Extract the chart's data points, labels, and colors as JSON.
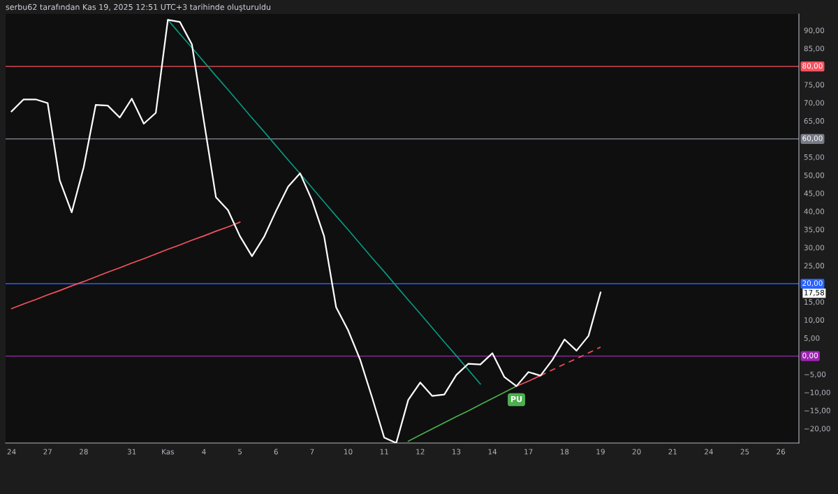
{
  "chart_data": {
    "type": "line",
    "title": "serbu62 tarafından Kas 19, 2025 12:51 UTC+3 tarihinde oluşturuldu",
    "ylim": [
      -24,
      94.5
    ],
    "categories": [
      "24",
      null,
      null,
      "27",
      null,
      null,
      "28",
      null,
      null,
      null,
      "31",
      null,
      null,
      "Kas",
      null,
      null,
      "4",
      null,
      null,
      "5",
      null,
      null,
      "6",
      null,
      null,
      "7",
      null,
      null,
      "10",
      null,
      null,
      "11",
      null,
      null,
      "12",
      null,
      null,
      "13",
      null,
      null,
      "14",
      null,
      null,
      "17",
      null,
      null,
      "18",
      null,
      null,
      "19",
      null,
      null,
      "20",
      null,
      null,
      "21",
      null,
      null,
      "24",
      null,
      null,
      "25",
      null,
      null,
      "26",
      null
    ],
    "yticks": [
      {
        "value": 90,
        "label": "90,00"
      },
      {
        "value": 85,
        "label": "85,00"
      },
      {
        "value": 75,
        "label": "75,00"
      },
      {
        "value": 70,
        "label": "70,00"
      },
      {
        "value": 65,
        "label": "65,00"
      },
      {
        "value": 55,
        "label": "55,00"
      },
      {
        "value": 50,
        "label": "50,00"
      },
      {
        "value": 45,
        "label": "45,00"
      },
      {
        "value": 40,
        "label": "40,00"
      },
      {
        "value": 35,
        "label": "35,00"
      },
      {
        "value": 30,
        "label": "30,00"
      },
      {
        "value": 25,
        "label": "25,00"
      },
      {
        "value": 17.58,
        "label": "17,58"
      },
      {
        "value": 15,
        "label": "15,00"
      },
      {
        "value": 10,
        "label": "10,00"
      },
      {
        "value": 5,
        "label": "5,00"
      },
      {
        "value": -5,
        "label": "−5,00"
      },
      {
        "value": -10,
        "label": "−10,00"
      },
      {
        "value": -15,
        "label": "−15,00"
      },
      {
        "value": -20,
        "label": "−20,00"
      }
    ],
    "series": [
      {
        "color": "#ffffff",
        "values": [
          67.6,
          70.9,
          70.9,
          69.9,
          48.6,
          39.7,
          52.2,
          69.4,
          69.2,
          65.9,
          71.1,
          64.2,
          67.2,
          92.9,
          92.3,
          86.1,
          64.9,
          43.9,
          40.3,
          33.1,
          27.6,
          32.9,
          40.1,
          46.8,
          50.5,
          43.0,
          33.1,
          13.5,
          7.1,
          -1.0,
          -11.5,
          -22.5,
          -24,
          -12.1,
          -7.3,
          -11.0,
          -10.6,
          -5.2,
          -2.1,
          -2.3,
          0.8,
          -5.8,
          -8.3,
          -4.4,
          -5.4,
          -1.0,
          4.6,
          1.5,
          5.6,
          17.58,
          null,
          null,
          null,
          null,
          null,
          null,
          null,
          null,
          null,
          null,
          null,
          null,
          null,
          null,
          null,
          null
        ]
      },
      {
        "color": "#089981",
        "values": [
          null,
          null,
          null,
          null,
          null,
          null,
          null,
          null,
          null,
          null,
          null,
          null,
          null,
          92.9,
          89.0,
          85.2,
          81.3,
          77.4,
          73.6,
          69.7,
          65.8,
          62.0,
          58.1,
          54.2,
          50.4,
          46.5,
          42.6,
          38.7,
          34.9,
          31.0,
          27.1,
          23.3,
          19.4,
          15.5,
          11.7,
          7.8,
          3.9,
          0.1,
          -3.8,
          -7.7,
          null,
          null,
          null,
          null,
          null,
          null,
          null,
          null,
          null,
          null,
          null,
          null,
          null,
          null,
          null,
          null,
          null,
          null,
          null,
          null,
          null,
          null,
          null,
          null,
          null,
          null
        ]
      },
      {
        "color": "#f7525f",
        "values": [
          13.1,
          14.4,
          15.6,
          16.9,
          18.1,
          19.4,
          20.6,
          21.9,
          23.2,
          24.4,
          25.7,
          26.9,
          28.2,
          29.5,
          30.7,
          32.0,
          33.2,
          34.5,
          35.7,
          37.0,
          null,
          null,
          null,
          null,
          null,
          null,
          null,
          null,
          null,
          null,
          null,
          null,
          null,
          null,
          null,
          null,
          null,
          null,
          null,
          null,
          null,
          null,
          null,
          null,
          null,
          null,
          null,
          null,
          null,
          null,
          null,
          null,
          null,
          null,
          null,
          null,
          null,
          null,
          null,
          null,
          null,
          null,
          null,
          null,
          null,
          null
        ]
      },
      {
        "color": "#4caf50",
        "values": [
          null,
          null,
          null,
          null,
          null,
          null,
          null,
          null,
          null,
          null,
          null,
          null,
          null,
          null,
          null,
          null,
          null,
          null,
          null,
          null,
          null,
          null,
          null,
          null,
          null,
          null,
          null,
          null,
          null,
          null,
          null,
          null,
          null,
          -23.5,
          -21.8,
          -20.1,
          -18.4,
          -16.7,
          -15.1,
          -13.4,
          -11.7,
          -10.0,
          -8.3,
          null,
          null,
          null,
          null,
          null,
          null,
          null,
          null,
          null,
          null,
          null,
          null,
          null,
          null,
          null,
          null,
          null,
          null,
          null,
          null,
          null,
          null,
          null
        ]
      },
      {
        "color": "#f7525f",
        "values": [
          null,
          null,
          null,
          null,
          null,
          null,
          null,
          null,
          null,
          null,
          null,
          null,
          null,
          null,
          null,
          null,
          null,
          null,
          null,
          null,
          null,
          null,
          null,
          null,
          null,
          null,
          null,
          null,
          null,
          null,
          null,
          null,
          null,
          null,
          null,
          null,
          null,
          null,
          null,
          null,
          null,
          null,
          -8.3,
          -6.9,
          -5.4,
          null,
          null,
          null,
          null,
          null,
          null,
          null,
          null,
          null,
          null,
          null,
          null,
          null,
          null,
          null,
          null,
          null,
          null,
          null,
          null,
          null
        ]
      },
      {
        "color": "#f7525f",
        "line_style": "dashed",
        "values": [
          null,
          null,
          null,
          null,
          null,
          null,
          null,
          null,
          null,
          null,
          null,
          null,
          null,
          null,
          null,
          null,
          null,
          null,
          null,
          null,
          null,
          null,
          null,
          null,
          null,
          null,
          null,
          null,
          null,
          null,
          null,
          null,
          null,
          null,
          null,
          null,
          null,
          null,
          null,
          null,
          null,
          null,
          null,
          null,
          -5.4,
          -3.8,
          -2.2,
          -0.7,
          0.9,
          2.5,
          null,
          null,
          null,
          null,
          null,
          null,
          null,
          null,
          null,
          null,
          null,
          null,
          null,
          null,
          null,
          null
        ]
      }
    ],
    "ref_lines": [
      {
        "axis": "y",
        "value": 80,
        "label": "80,00",
        "color": "#f7525f"
      },
      {
        "axis": "y",
        "value": 60,
        "label": "60,00",
        "color": "#787b86"
      },
      {
        "axis": "y",
        "value": 20,
        "label": "20,00",
        "color": "#2962ff"
      },
      {
        "axis": "y",
        "value": 0,
        "label": "0,00",
        "color": "#9c27b0"
      }
    ],
    "annotations": [
      {
        "text": "PU",
        "y": -8.3
      }
    ]
  }
}
